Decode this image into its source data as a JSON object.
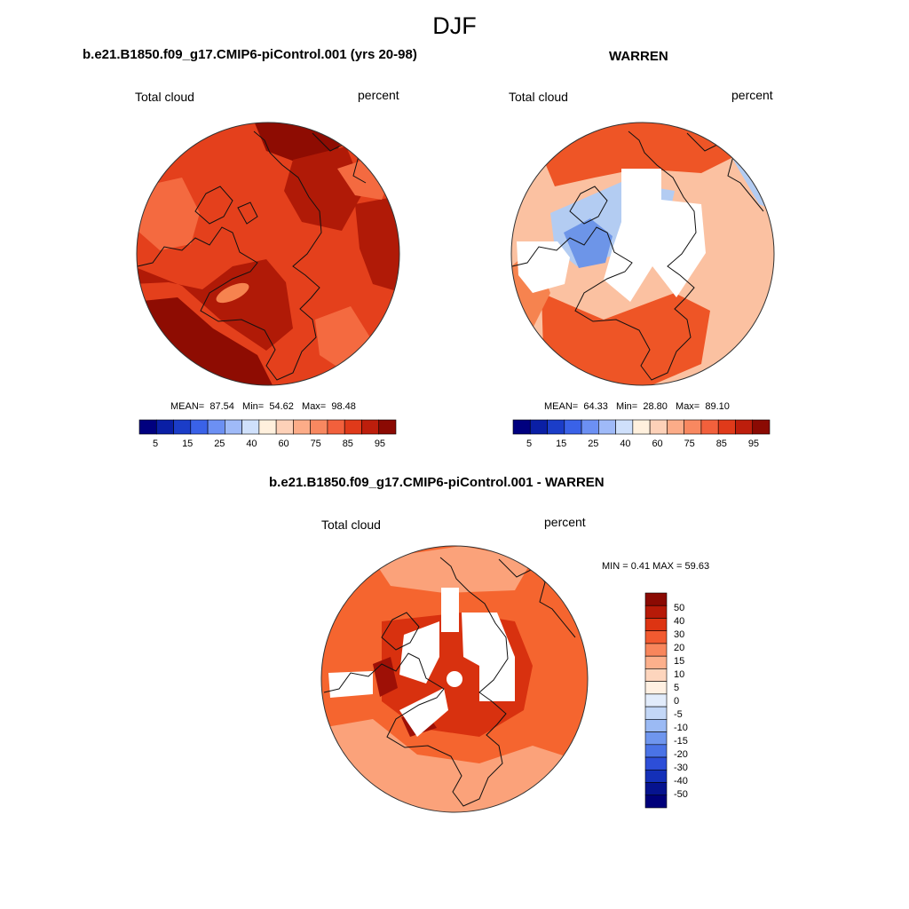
{
  "season": "DJF",
  "panels": [
    {
      "title": "b.e21.B1850.f09_g17.CMIP6-piControl.001 (yrs 20-98)",
      "variable_label": "Total cloud",
      "units_label": "percent",
      "stats": {
        "mean_label": "MEAN=",
        "mean": "87.54",
        "min_label": "Min=",
        "min": "54.62",
        "max_label": "Max=",
        "max": "98.48"
      }
    },
    {
      "title": "WARREN",
      "variable_label": "Total cloud",
      "units_label": "percent",
      "stats": {
        "mean_label": "MEAN=",
        "mean": "64.33",
        "min_label": "Min=",
        "min": "28.80",
        "max_label": "Max=",
        "max": "89.10"
      }
    },
    {
      "title": "b.e21.B1850.f09_g17.CMIP6-piControl.001 - WARREN",
      "variable_label": "Total cloud",
      "units_label": "percent",
      "stats_text": "MIN =   0.41 MAX =  59.63"
    }
  ],
  "colorbar_abs": {
    "colors": [
      "#00007f",
      "#0a1fa5",
      "#1b3dc8",
      "#3a62e8",
      "#6c90f3",
      "#9fbaf8",
      "#cfe0fb",
      "#fff0dd",
      "#fdd1b8",
      "#fcac88",
      "#f88860",
      "#f2603c",
      "#e03a1a",
      "#bd1e0c",
      "#8b0a03"
    ],
    "tick_labels": [
      "5",
      "15",
      "25",
      "40",
      "60",
      "75",
      "85",
      "95"
    ]
  },
  "colorbar_diff": {
    "colors_top_to_bottom": [
      "#8b0a03",
      "#b71a08",
      "#dd3412",
      "#f25a30",
      "#f8865c",
      "#fcb08c",
      "#fdd5bd",
      "#fff0e2",
      "#e2ecfb",
      "#c3d7f7",
      "#9bbaf4",
      "#6f96ee",
      "#4a73e6",
      "#2d4ed8",
      "#1430b8",
      "#06138f",
      "#00007a"
    ],
    "tick_labels_top_to_bottom": [
      "50",
      "40",
      "30",
      "20",
      "15",
      "10",
      "5",
      "0",
      "-5",
      "-10",
      "-15",
      "-20",
      "-30",
      "-40",
      "-50"
    ]
  },
  "palette": {
    "control_base": "#e4401c",
    "control_dark": "#b01a07",
    "control_darkest": "#8e0c02",
    "control_light": "#f46a40",
    "obs_base": "#fbc1a1",
    "obs_mid": "#f6834f",
    "obs_warm": "#ee5526",
    "obs_blue": "#b3ccf2",
    "obs_blue2": "#6d95e8",
    "diff_base": "#f5652f",
    "diff_light": "#fba27a",
    "diff_dark": "#d8310f",
    "diff_darkest": "#9e1006",
    "missing": "#ffffff",
    "coast": "#111111"
  }
}
